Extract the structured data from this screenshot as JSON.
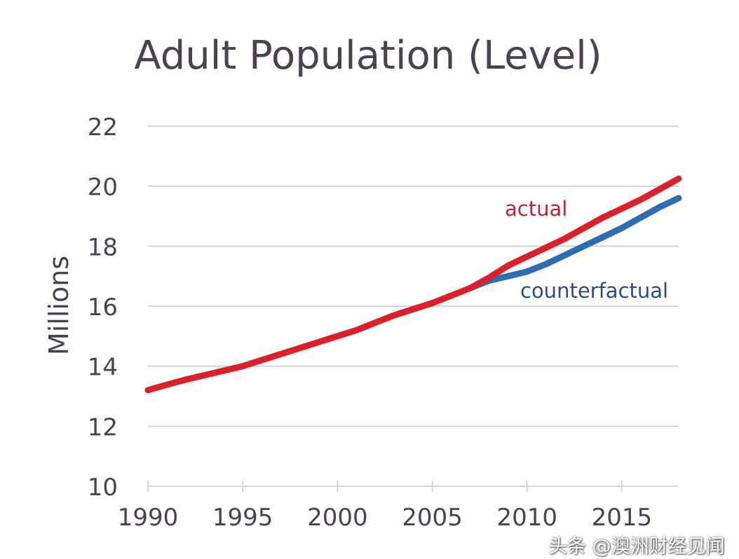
{
  "chart_data": {
    "type": "line",
    "title": "Adult Population (Level)",
    "xlabel": "",
    "ylabel": "Millions",
    "xlim": [
      1990,
      2018
    ],
    "ylim": [
      10,
      22
    ],
    "x_ticks": [
      1990,
      1995,
      2000,
      2005,
      2010,
      2015
    ],
    "y_ticks": [
      10,
      12,
      14,
      16,
      18,
      20,
      22
    ],
    "grid": true,
    "series": [
      {
        "name": "actual",
        "color": "#d9202b",
        "x": [
          1990,
          1991,
          1992,
          1993,
          1994,
          1995,
          1996,
          1997,
          1998,
          1999,
          2000,
          2001,
          2002,
          2003,
          2004,
          2005,
          2006,
          2007,
          2008,
          2009,
          2010,
          2011,
          2012,
          2013,
          2014,
          2015,
          2016,
          2017,
          2018
        ],
        "values": [
          13.2,
          13.38,
          13.55,
          13.7,
          13.85,
          14.0,
          14.2,
          14.4,
          14.6,
          14.8,
          15.0,
          15.2,
          15.45,
          15.7,
          15.9,
          16.1,
          16.35,
          16.6,
          16.95,
          17.35,
          17.65,
          17.95,
          18.25,
          18.6,
          18.95,
          19.25,
          19.55,
          19.9,
          20.25
        ]
      },
      {
        "name": "counterfactual",
        "color": "#2e6db4",
        "x": [
          2007,
          2008,
          2009,
          2010,
          2011,
          2012,
          2013,
          2014,
          2015,
          2016,
          2017,
          2018
        ],
        "values": [
          16.6,
          16.85,
          17.0,
          17.15,
          17.4,
          17.7,
          18.0,
          18.3,
          18.6,
          18.95,
          19.3,
          19.6
        ]
      }
    ]
  },
  "watermark": "头条 @澳洲财经见闻"
}
